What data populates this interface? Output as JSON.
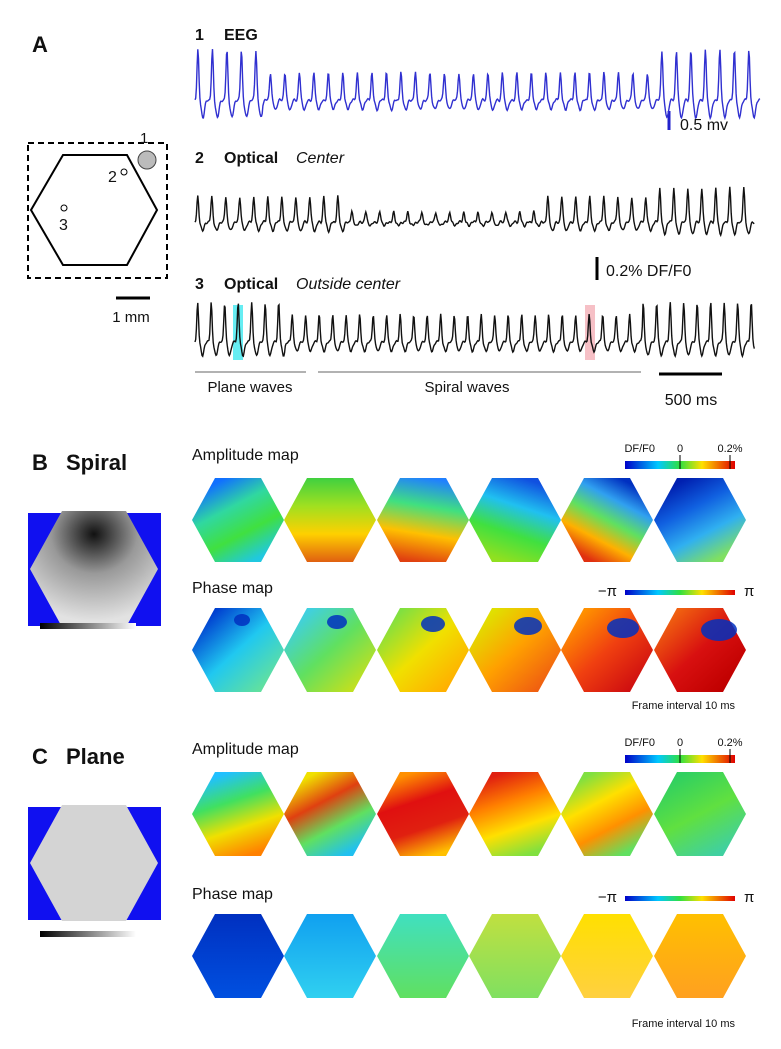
{
  "panel_a": {
    "label": "A",
    "diagram": {
      "site_labels": [
        "1",
        "2",
        "3"
      ],
      "scale_bar": "1 mm"
    },
    "traces": [
      {
        "number": "1",
        "title": "EEG"
      },
      {
        "number": "2",
        "title": "Optical",
        "subtitle": "Center"
      },
      {
        "number": "3",
        "title": "Optical",
        "subtitle": "Outside center"
      }
    ],
    "eeg_scale": "0.5 mv",
    "optical_scale": "0.2% DF/F0",
    "segments": [
      "Plane waves",
      "Spiral waves"
    ],
    "time_scale": "500 ms"
  },
  "panel_b": {
    "label": "B",
    "title": "Spiral",
    "amplitude_map": {
      "title": "Amplitude map",
      "colorbar_labels": [
        "DF/F0",
        "0",
        "0.2%"
      ]
    },
    "phase_map": {
      "title": "Phase map",
      "colorbar_labels": [
        "−π",
        "π"
      ]
    },
    "note": "Frame interval 10 ms"
  },
  "panel_c": {
    "label": "C",
    "title": "Plane",
    "amplitude_map": {
      "title": "Amplitude map",
      "colorbar_labels": [
        "DF/F0",
        "0",
        "0.2%"
      ]
    },
    "phase_map": {
      "title": "Phase map",
      "colorbar_labels": [
        "−π",
        "π"
      ]
    },
    "note": "Frame interval 10 ms"
  }
}
